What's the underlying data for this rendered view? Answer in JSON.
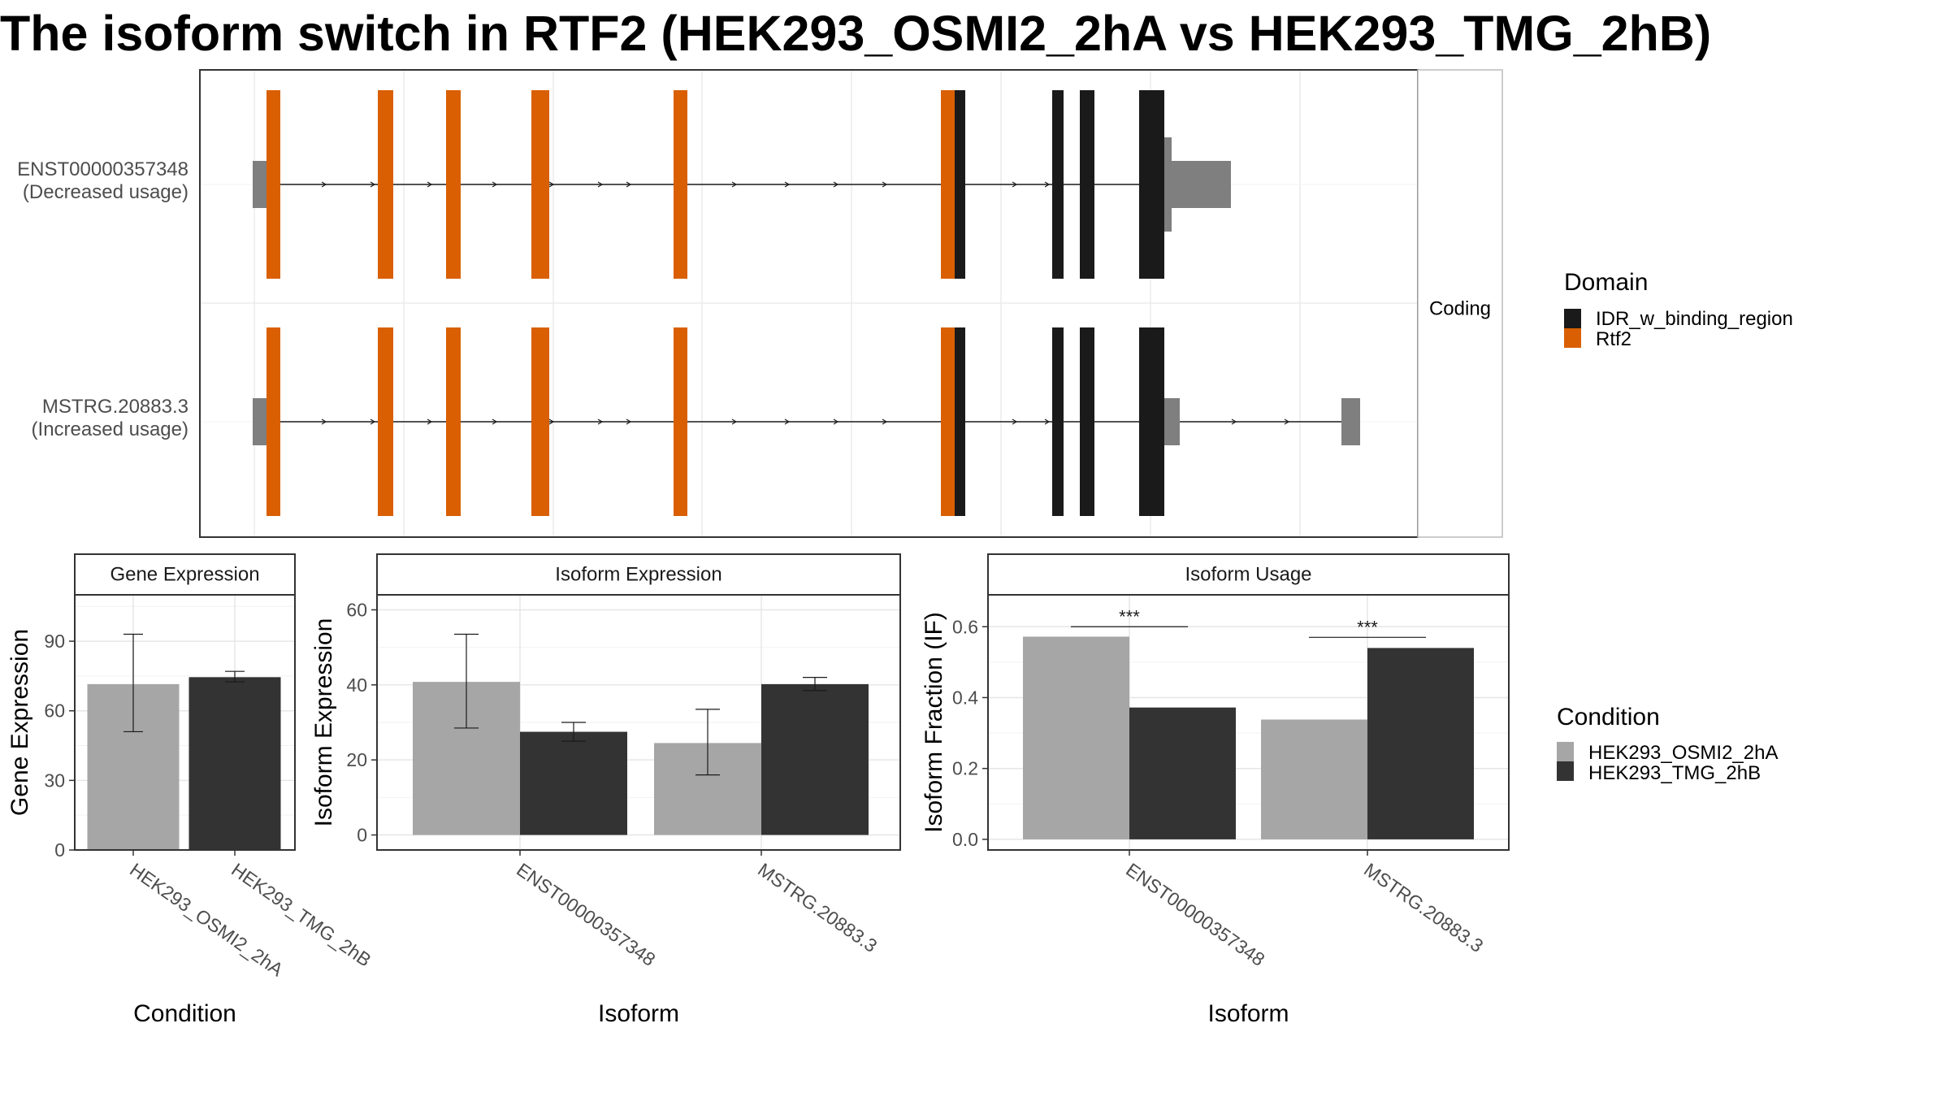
{
  "title": "The isoform switch in RTF2 (HEK293_OSMI2_2hA vs HEK293_TMG_2hB)",
  "colors": {
    "domain_idr": "#1a1a1a",
    "domain_rtf2": "#d95f02",
    "utr_noncoding": "#7f7f7f",
    "cond_a": "#a6a6a6",
    "cond_b": "#333333"
  },
  "isoform_panel": {
    "strip_label": "Coding",
    "isoforms": [
      {
        "id": "ENST00000357348",
        "usage": "(Decreased usage)"
      },
      {
        "id": "MSTRG.20883.3",
        "usage": "(Increased usage)"
      }
    ],
    "domain_legend": {
      "title": "Domain",
      "items": [
        {
          "label": "IDR_w_binding_region",
          "color": "#1a1a1a"
        },
        {
          "label": "Rtf2",
          "color": "#d95f02"
        }
      ]
    }
  },
  "condition_legend": {
    "title": "Condition",
    "items": [
      {
        "label": "HEK293_OSMI2_2hA",
        "color": "#a6a6a6"
      },
      {
        "label": "HEK293_TMG_2hB",
        "color": "#333333"
      }
    ]
  },
  "chart_data": [
    {
      "type": "bar",
      "title": "Gene Expression",
      "xlabel": "Condition",
      "ylabel": "Gene Expression",
      "ylim": [
        0,
        110
      ],
      "yticks": [
        0,
        30,
        60,
        90
      ],
      "categories": [
        "HEK293_OSMI2_2hA",
        "HEK293_TMG_2hB"
      ],
      "values": [
        71.5,
        74.5
      ],
      "error_low": [
        51,
        72.5
      ],
      "error_high": [
        93,
        77
      ],
      "bar_colors": [
        "#a6a6a6",
        "#333333"
      ]
    },
    {
      "type": "bar",
      "title": "Isoform Expression",
      "xlabel": "Isoform",
      "ylabel": "Isoform Expression",
      "ylim": [
        -4,
        64
      ],
      "yticks": [
        0,
        20,
        40,
        60
      ],
      "categories": [
        "ENST00000357348",
        "MSTRG.20883.3"
      ],
      "series": [
        {
          "name": "HEK293_OSMI2_2hA",
          "values": [
            40.8,
            24.5
          ],
          "error_low": [
            28.5,
            16
          ],
          "error_high": [
            53.5,
            33.5
          ],
          "color": "#a6a6a6"
        },
        {
          "name": "HEK293_TMG_2hB",
          "values": [
            27.5,
            40.2
          ],
          "error_low": [
            25,
            38.5
          ],
          "error_high": [
            30,
            42
          ],
          "color": "#333333"
        }
      ]
    },
    {
      "type": "bar",
      "title": "Isoform Usage",
      "xlabel": "Isoform",
      "ylabel": "Isoform Fraction (IF)",
      "ylim": [
        -0.03,
        0.69
      ],
      "yticks": [
        "0.0",
        "0.2",
        "0.4",
        "0.6"
      ],
      "categories": [
        "ENST00000357348",
        "MSTRG.20883.3"
      ],
      "series": [
        {
          "name": "HEK293_OSMI2_2hA",
          "values": [
            0.572,
            0.338
          ],
          "color": "#a6a6a6"
        },
        {
          "name": "HEK293_TMG_2hB",
          "values": [
            0.372,
            0.54
          ],
          "color": "#333333"
        }
      ],
      "significance": [
        {
          "label": "***",
          "y": 0.6
        },
        {
          "label": "***",
          "y": 0.57
        }
      ]
    }
  ]
}
